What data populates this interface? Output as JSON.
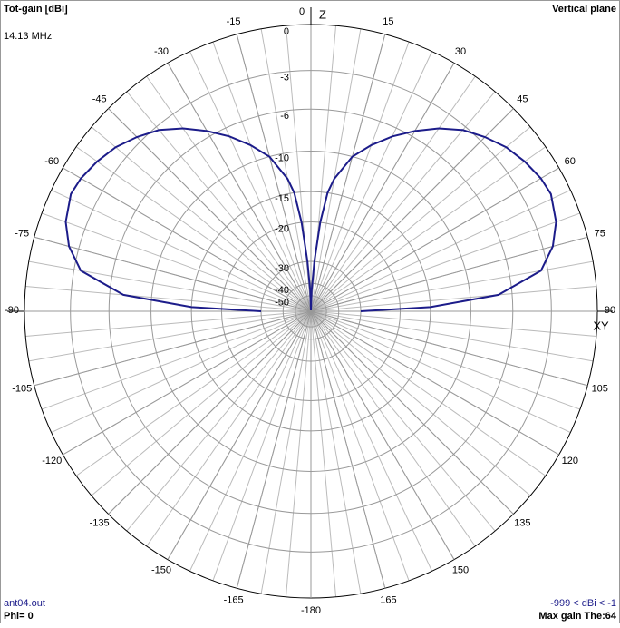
{
  "chart_data": {
    "type": "polar",
    "title": "Tot-gain [dBi]",
    "subtitle": "14.13 MHz",
    "plane": "Vertical plane",
    "axis_labels": {
      "z": "Z",
      "xy": "XY"
    },
    "footer": {
      "file": "ant04.out",
      "phi": "Phi= 0",
      "range": "-999 < dBi < -1",
      "max_gain": "Max gain The:64"
    },
    "rscale": "arrl-log",
    "rmax": 0,
    "rticks": [
      0,
      -3,
      -6,
      -10,
      -15,
      -20,
      -30,
      -40,
      -50
    ],
    "angle_ticks": [
      0,
      15,
      30,
      45,
      60,
      75,
      90,
      105,
      120,
      135,
      150,
      165,
      -180,
      -165,
      -150,
      -135,
      -120,
      -105,
      -90,
      -75,
      -60,
      -45,
      -30,
      -15
    ],
    "color": "#1c1c8a",
    "theta": [
      -90,
      -88,
      -85,
      -80,
      -75,
      -70,
      -64,
      -60,
      -55,
      -50,
      -45,
      -40,
      -35,
      -30,
      -25,
      -20,
      -15,
      -10,
      -8,
      -6,
      -4,
      -2,
      0,
      2,
      4,
      6,
      8,
      10,
      15,
      20,
      25,
      30,
      35,
      40,
      45,
      50,
      55,
      60,
      64,
      70,
      75,
      80,
      85,
      88,
      90
    ],
    "values": [
      -30,
      -15,
      -7.2,
      -3.5,
      -2.3,
      -1.6,
      -1.2,
      -1.3,
      -1.6,
      -2.0,
      -2.6,
      -3.3,
      -4.3,
      -5.5,
      -6.8,
      -8.3,
      -10,
      -13,
      -15,
      -20,
      -30,
      -45,
      -99,
      -45,
      -30,
      -20,
      -15,
      -13,
      -10,
      -8.3,
      -6.8,
      -5.5,
      -4.3,
      -3.3,
      -2.6,
      -2.0,
      -1.6,
      -1.3,
      -1.2,
      -1.6,
      -2.3,
      -3.5,
      -7.2,
      -15,
      -30
    ]
  }
}
